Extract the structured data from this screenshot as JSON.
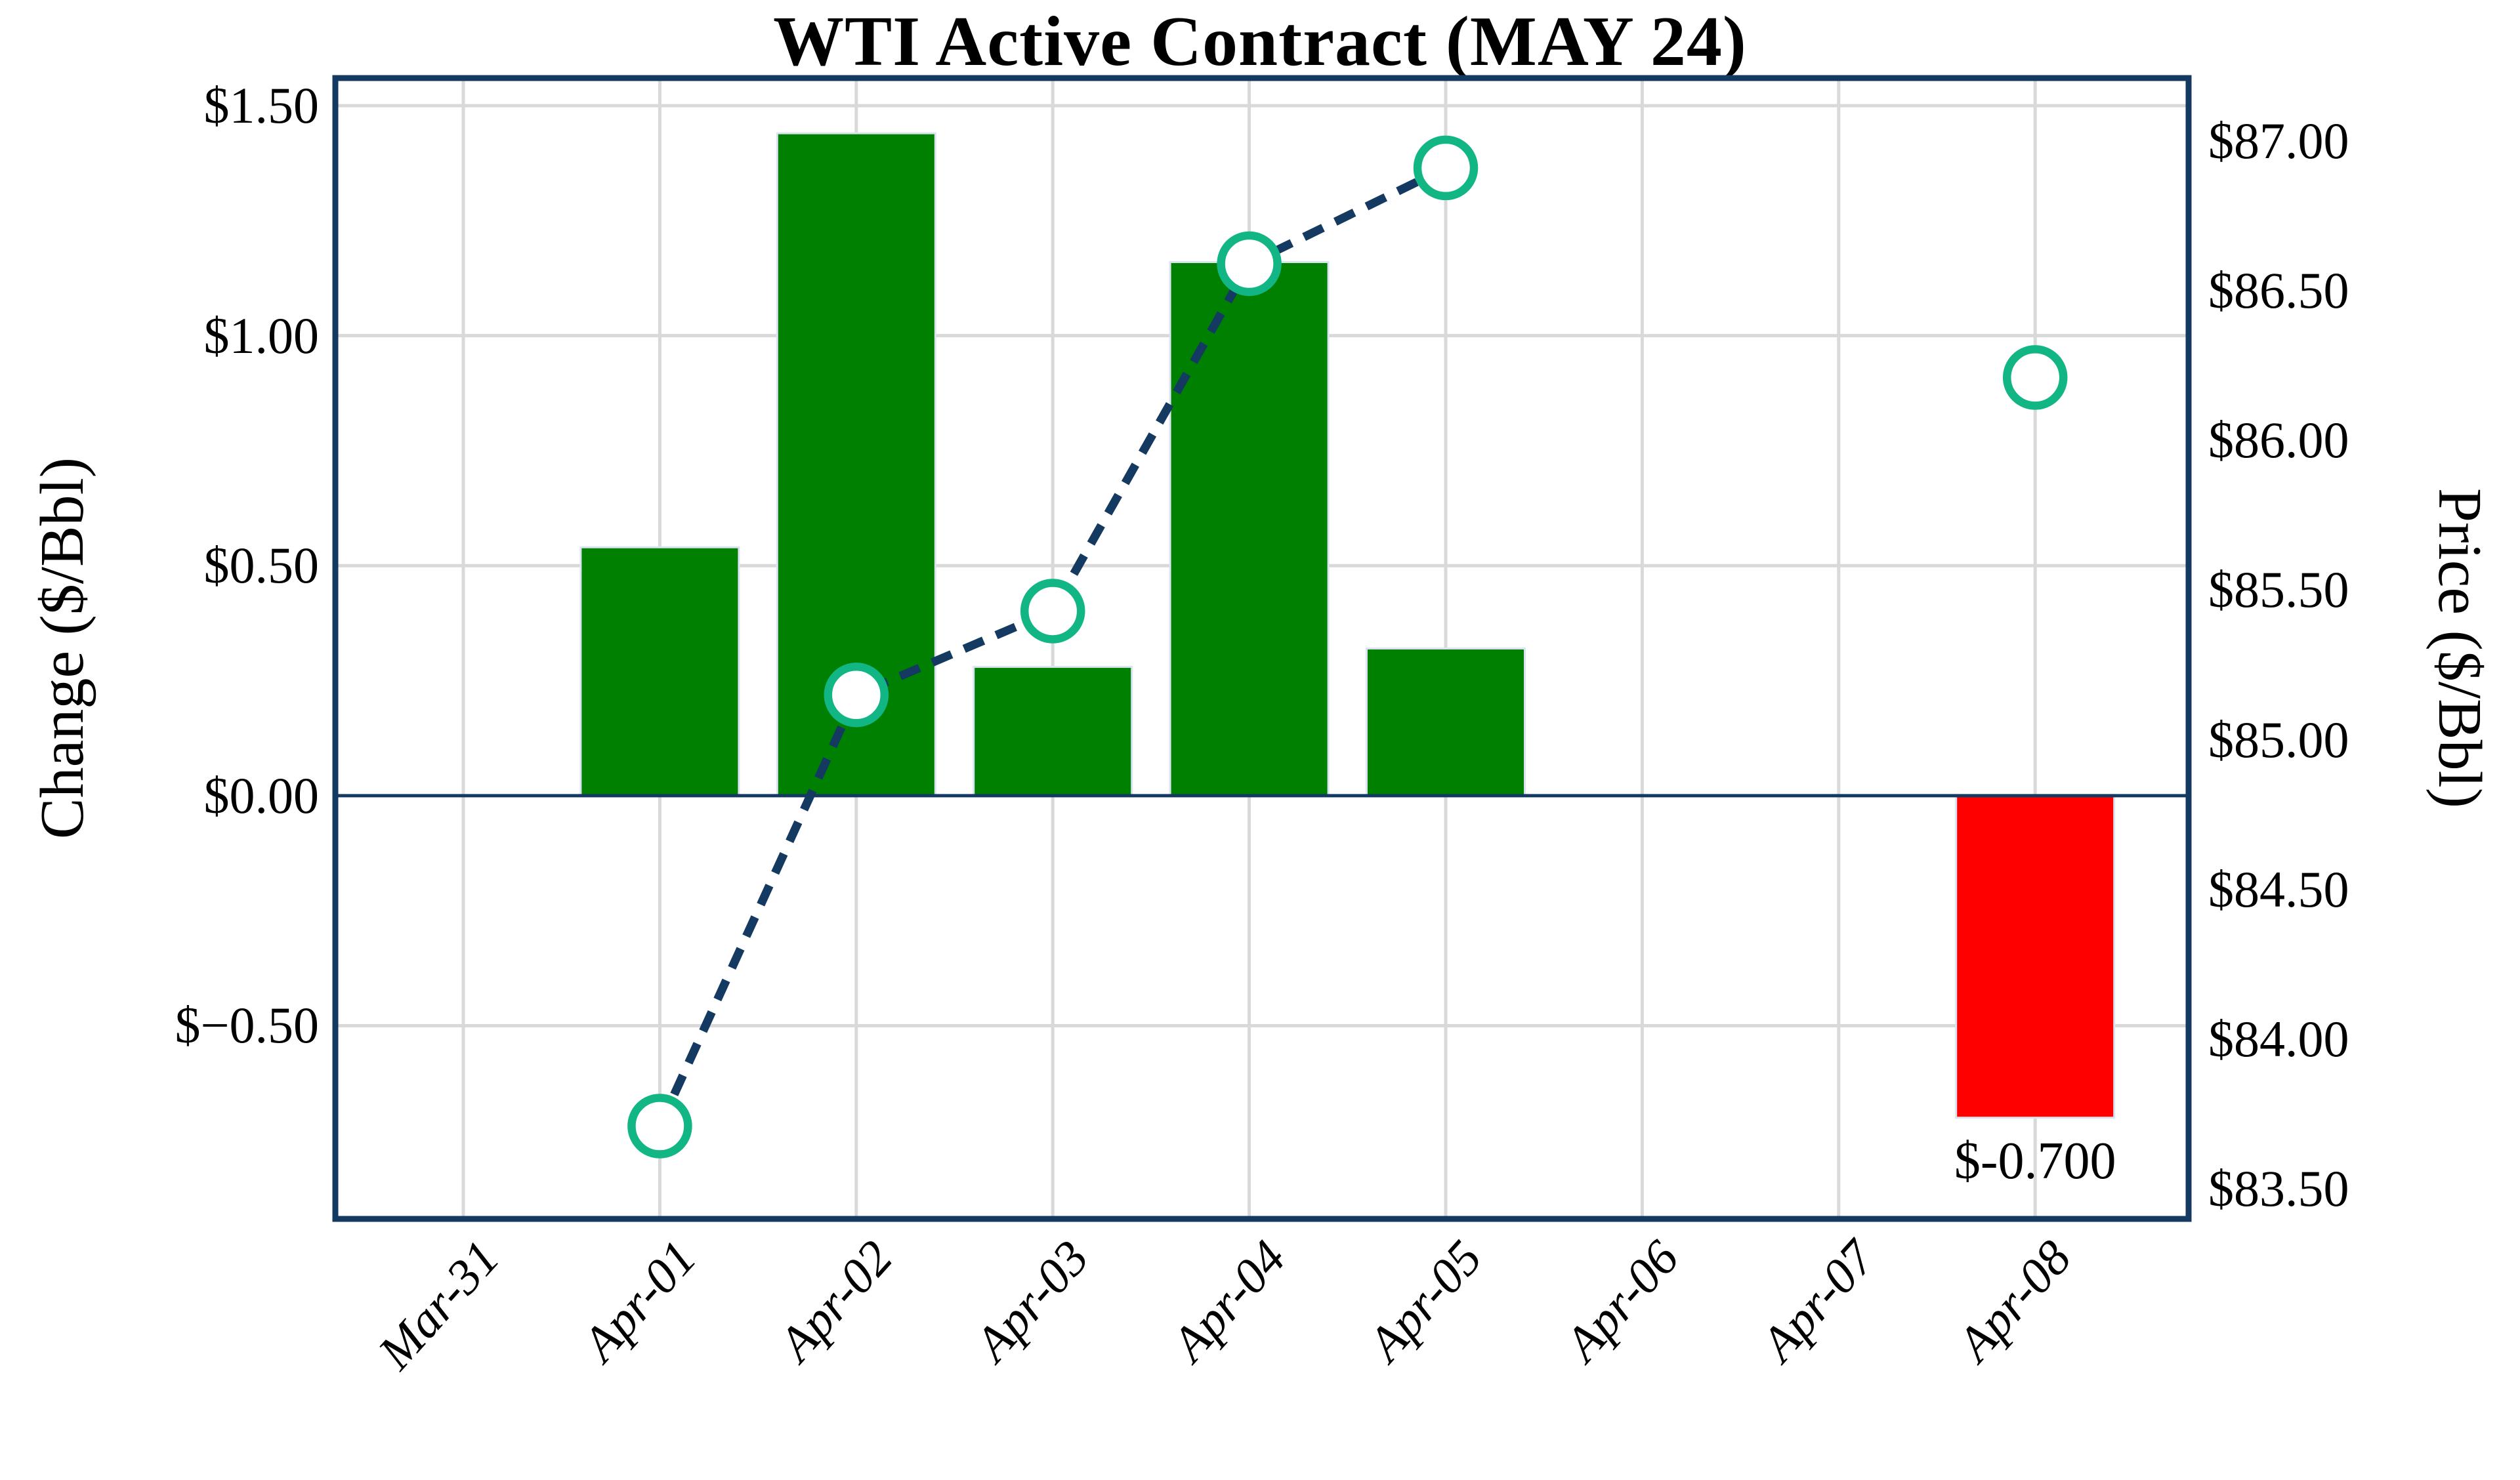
{
  "title": "WTI Active Contract (MAY 24)",
  "left_axis": {
    "label": "Change ($/Bbl)",
    "tick_labels": [
      "$1.50",
      "$1.00",
      "$0.50",
      "$0.00",
      "$−0.50"
    ]
  },
  "right_axis": {
    "label": "Price ($/Bbl)",
    "tick_labels": [
      "$87.00",
      "$86.50",
      "$86.00",
      "$85.50",
      "$85.00",
      "$84.50",
      "$84.00",
      "$83.50"
    ]
  },
  "x_axis": {
    "tick_labels": [
      "Mar-31",
      "Apr-01",
      "Apr-02",
      "Apr-03",
      "Apr-04",
      "Apr-05",
      "Apr-06",
      "Apr-07",
      "Apr-08"
    ]
  },
  "annotation": {
    "text": "$-0.700",
    "category": "Apr-08"
  },
  "colors": {
    "bar_positive": "#008000",
    "bar_negative": "#ff0000",
    "bar_edge": "#d9e4f0",
    "line": "#143a61",
    "marker_ring": "#12b584",
    "marker_face": "#ffffff",
    "grid": "#d9d9d9",
    "border": "#143a61",
    "zero_line": "#143a61",
    "text": "#000000"
  },
  "chart_data": {
    "type": "bar+line",
    "title": "WTI Active Contract (MAY 24)",
    "categories": [
      "Mar-31",
      "Apr-01",
      "Apr-02",
      "Apr-03",
      "Apr-04",
      "Apr-05",
      "Apr-06",
      "Apr-07",
      "Apr-08"
    ],
    "series": [
      {
        "name": "Change ($/Bbl)",
        "type": "bar",
        "axis": "left",
        "values": [
          null,
          0.54,
          1.44,
          0.28,
          1.16,
          0.32,
          null,
          null,
          -0.7
        ]
      },
      {
        "name": "Price ($/Bbl)",
        "type": "line",
        "axis": "right",
        "style": "dashed",
        "marker": "open-circle",
        "values": [
          null,
          83.71,
          85.15,
          85.43,
          86.59,
          86.91,
          null,
          null,
          86.21
        ]
      }
    ],
    "left_ticks": [
      1.5,
      1.0,
      0.5,
      0.0,
      -0.5
    ],
    "right_ticks": [
      87.0,
      86.5,
      86.0,
      85.5,
      85.0,
      84.5,
      84.0,
      83.5
    ],
    "left_ylim": [
      -0.92,
      1.56
    ],
    "right_ylim": [
      83.4,
      87.21
    ],
    "xlabel": "",
    "ylabel_left": "Change ($/Bbl)",
    "ylabel_right": "Price ($/Bbl)",
    "grid": true,
    "legend": false,
    "annotations": [
      {
        "text": "$-0.700",
        "category": "Apr-08",
        "position": "below-bar"
      }
    ]
  }
}
